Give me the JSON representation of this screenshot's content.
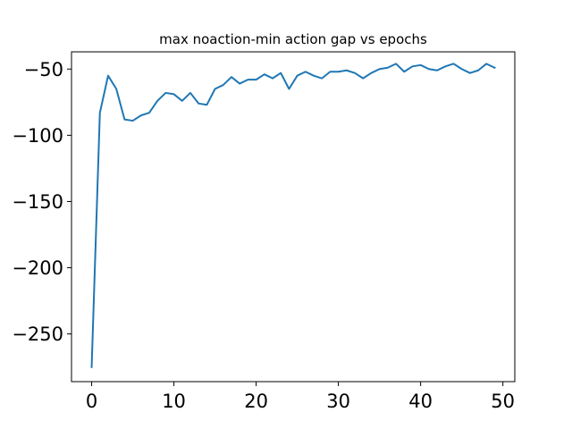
{
  "chart_data": {
    "type": "line",
    "title": "max noaction-min action gap vs epochs",
    "xlabel": "",
    "ylabel": "",
    "xlim": [
      -2.45,
      51.45
    ],
    "ylim": [
      -286,
      -37
    ],
    "x_ticks": [
      0,
      10,
      20,
      30,
      40,
      50
    ],
    "y_ticks": [
      -250,
      -200,
      -150,
      -100,
      -50
    ],
    "x_tick_labels": [
      "0",
      "10",
      "20",
      "30",
      "40",
      "50"
    ],
    "y_tick_labels": [
      "−250",
      "−200",
      "−150",
      "−100",
      "−50"
    ],
    "grid": false,
    "legend": "none",
    "line_color": "#1f77b4",
    "series": [
      {
        "x": [
          0,
          1,
          2,
          3,
          4,
          5,
          6,
          7,
          8,
          9,
          10,
          11,
          12,
          13,
          14,
          15,
          16,
          17,
          18,
          19,
          20,
          21,
          22,
          23,
          24,
          25,
          26,
          27,
          28,
          29,
          30,
          31,
          32,
          33,
          34,
          35,
          36,
          37,
          38,
          39,
          40,
          41,
          42,
          43,
          44,
          45,
          46,
          47,
          48,
          49
        ],
        "values": [
          -275,
          -83,
          -55,
          -65,
          -88,
          -89,
          -85,
          -83,
          -74,
          -68,
          -69,
          -74,
          -68,
          -76,
          -77,
          -65,
          -62,
          -56,
          -61,
          -58,
          -58,
          -54,
          -57,
          -53,
          -65,
          -55,
          -52,
          -55,
          -57,
          -52,
          -52,
          -51,
          -53,
          -57,
          -53,
          -50,
          -49,
          -46,
          -52,
          -48,
          -47,
          -50,
          -51,
          -48,
          -46,
          -50,
          -53,
          -51,
          -46,
          -49
        ]
      }
    ]
  }
}
